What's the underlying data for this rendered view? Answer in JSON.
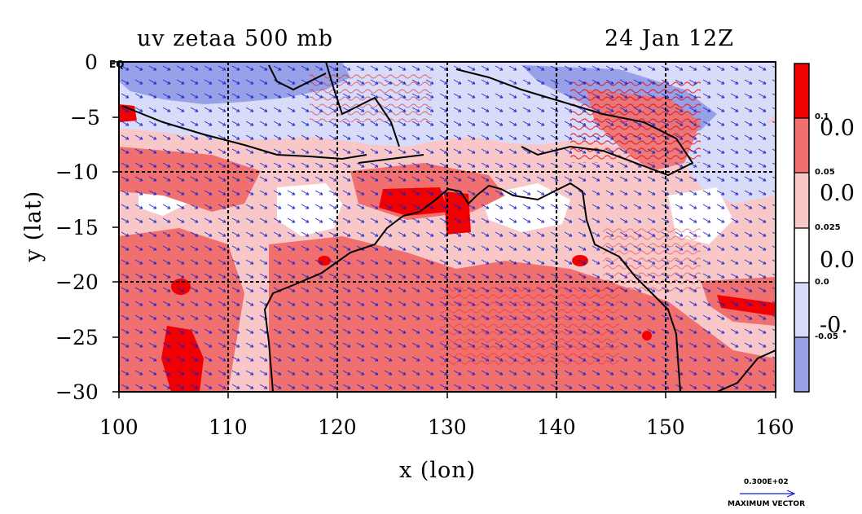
{
  "header": {
    "title_left": "uv zetaa 500 mb",
    "title_right": "24 Jan 12Z"
  },
  "map": {
    "x_label": "x (lon)",
    "y_label": "y (lat)",
    "x_ticks": [
      "100",
      "110",
      "120",
      "130",
      "140",
      "150",
      "160"
    ],
    "y_ticks": [
      "0",
      "−5",
      "−10",
      "−15",
      "−20",
      "−25",
      "−30"
    ],
    "corner_label": "EQ",
    "colors": {
      "strong_positive": "#f00000",
      "positive": "#f07070",
      "weak_positive": "#f8c8c8",
      "neutral": "#ffffff",
      "weak_negative": "#d8dcf8",
      "negative": "#98a0e8",
      "vector": "#1020d0",
      "coast": "#000000"
    }
  },
  "colorbar": {
    "levels": [
      "0.1",
      "0.05",
      "0.025",
      "0.0",
      "-0.05"
    ],
    "big_labels": [
      "0.0",
      "0.0",
      "0.0",
      "-0."
    ],
    "swatches": [
      "#f00000",
      "#f07070",
      "#f8c8c8",
      "#ffffff",
      "#d8dcf8",
      "#98a0e8"
    ]
  },
  "vector_key": {
    "value": "0.300E+02",
    "label": "MAXIMUM VECTOR"
  }
}
